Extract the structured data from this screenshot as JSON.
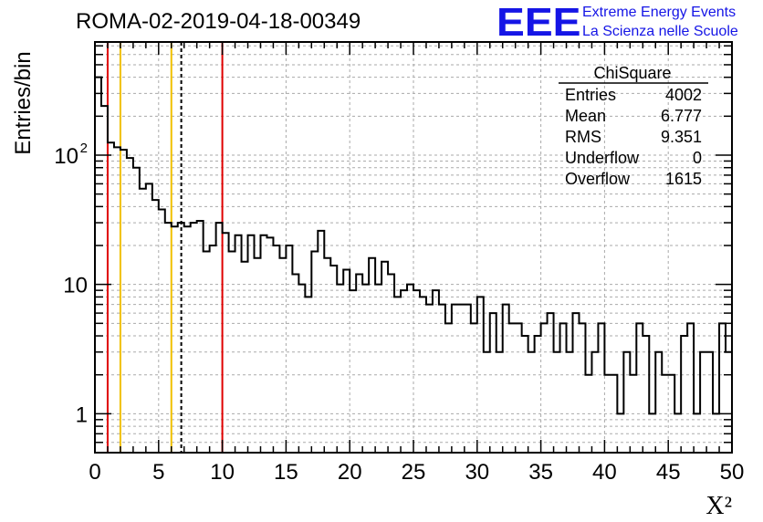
{
  "header": {
    "title": "ROMA-02-2019-04-18-00349",
    "logo_text": "EEE",
    "logo_line1": "Extreme Energy Events",
    "logo_line2": "La Scienza nelle Scuole",
    "logo_color": "#1515e6"
  },
  "stats": {
    "name": "ChiSquare",
    "rows": [
      {
        "label": "Entries",
        "value": "4002"
      },
      {
        "label": "Mean",
        "value": "6.777"
      },
      {
        "label": "RMS",
        "value": "9.351"
      },
      {
        "label": "Underflow",
        "value": "0"
      },
      {
        "label": "Overflow",
        "value": "1615"
      }
    ]
  },
  "chart_data": {
    "type": "bar",
    "style": "step-histogram",
    "xlabel": "X²",
    "ylabel": "Entries/bin",
    "xlim": [
      0,
      50
    ],
    "ylim": [
      0.5,
      750
    ],
    "yscale": "log",
    "grid": true,
    "bin_width": 0.5,
    "bin_start": 0,
    "values": [
      400,
      240,
      125,
      115,
      110,
      95,
      80,
      55,
      60,
      45,
      38,
      30,
      28,
      30,
      28,
      30,
      31,
      18,
      20,
      30,
      25,
      18,
      24,
      15,
      24,
      16,
      24,
      23,
      20,
      16,
      20,
      12,
      10,
      8,
      18,
      26,
      16,
      14,
      10,
      13,
      9,
      12,
      10,
      16,
      10,
      15,
      12,
      8,
      9,
      10,
      9,
      8,
      7,
      9,
      7,
      5,
      7,
      7,
      7,
      5,
      8,
      3,
      6,
      3,
      7,
      5,
      5,
      4,
      3,
      4,
      5,
      6,
      3,
      5,
      3,
      6,
      5,
      2,
      3,
      5,
      2,
      2,
      1,
      3,
      2,
      5,
      4,
      1,
      3,
      2,
      2,
      1,
      4,
      5,
      1,
      3,
      3,
      1,
      5,
      3
    ],
    "x_ticks": [
      "0",
      "5",
      "10",
      "15",
      "20",
      "25",
      "30",
      "35",
      "40",
      "45",
      "50"
    ],
    "y_ticks": [
      {
        "value": 1,
        "label": "1"
      },
      {
        "value": 10,
        "label": "10"
      },
      {
        "value": 100,
        "label": "10",
        "exponent": "2"
      }
    ],
    "vertical_lines": [
      {
        "x": 1,
        "color": "#e00000",
        "style": "solid"
      },
      {
        "x": 2,
        "color": "#f0c000",
        "style": "solid"
      },
      {
        "x": 6,
        "color": "#f0c000",
        "style": "solid"
      },
      {
        "x": 6.777,
        "color": "#000000",
        "style": "dashed"
      },
      {
        "x": 10,
        "color": "#e00000",
        "style": "solid"
      }
    ]
  }
}
